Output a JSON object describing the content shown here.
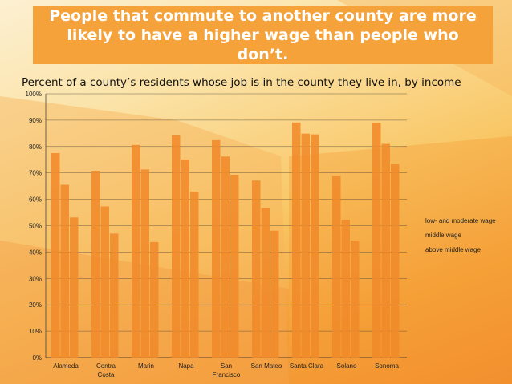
{
  "title": "People that commute to another county are more likely to have a higher wage than people who don’t.",
  "subtitle": "Percent of a county’s residents whose job is in the county they live in, by income",
  "colors": {
    "bar": "#f08a2a",
    "accent": "#f5a23b",
    "grid": "#333333"
  },
  "chart_data": {
    "type": "bar",
    "categories": [
      [
        "Alameda"
      ],
      [
        "Contra",
        "Costa"
      ],
      [
        "Marin"
      ],
      [
        "Napa"
      ],
      [
        "San",
        "Francisco"
      ],
      [
        "San Mateo"
      ],
      [
        "Santa Clara"
      ],
      [
        "Solano"
      ],
      [
        "Sonoma"
      ]
    ],
    "series": [
      {
        "name": "low- and moderate wage",
        "values": [
          77.5,
          70.8,
          80.6,
          84.3,
          82.4,
          67.1,
          89.1,
          68.9,
          89.0
        ]
      },
      {
        "name": "middle wage",
        "values": [
          65.5,
          57.3,
          71.3,
          75.0,
          76.2,
          56.7,
          84.9,
          52.2,
          81.0
        ]
      },
      {
        "name": "above middle wage",
        "values": [
          53.1,
          47.0,
          43.8,
          62.9,
          69.3,
          48.1,
          84.6,
          44.4,
          73.4
        ]
      }
    ],
    "ylim": [
      0,
      100
    ],
    "yticks": [
      "0%",
      "10%",
      "20%",
      "30%",
      "40%",
      "50%",
      "60%",
      "70%",
      "80%",
      "90%",
      "100%"
    ],
    "legend_position": "right"
  }
}
